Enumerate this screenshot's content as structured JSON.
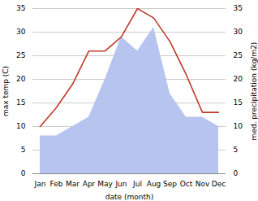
{
  "chart_data": {
    "type": "line",
    "xlabel": "date (month)",
    "ylabel": "max temp (C)",
    "y2label": "med. precipitation (kg/m2)",
    "categories": [
      "Jan",
      "Feb",
      "Mar",
      "Apr",
      "May",
      "Jun",
      "Jul",
      "Aug",
      "Sep",
      "Oct",
      "Nov",
      "Dec"
    ],
    "series": [
      {
        "type": "area",
        "axis": "y2",
        "color": "#b8c4f0",
        "values": [
          8,
          8,
          10,
          12,
          20,
          29,
          26,
          31,
          17,
          12,
          12,
          10
        ]
      },
      {
        "type": "line",
        "color": "#c0392b",
        "values": [
          10,
          14,
          19,
          26,
          26,
          29,
          35,
          33,
          28,
          21,
          13,
          13
        ]
      }
    ],
    "ylim": [
      0,
      35
    ],
    "yticks": [
      0,
      5,
      10,
      15,
      20,
      25,
      30,
      35
    ],
    "y2lim": [
      0,
      35
    ],
    "y2ticks": [
      0,
      5,
      10,
      15,
      20,
      25,
      30,
      35
    ],
    "grid": true
  }
}
